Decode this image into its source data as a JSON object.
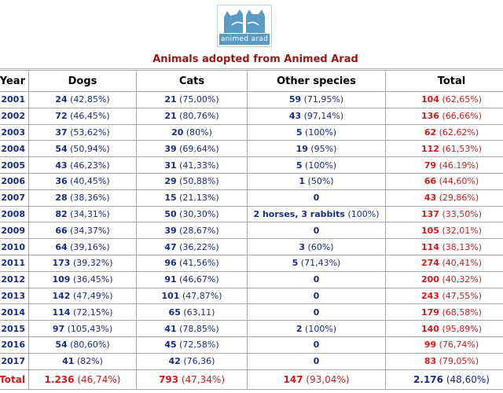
{
  "logo": {
    "text": "animed arad"
  },
  "caption": "Animals adopted from Animed Arad",
  "headers": {
    "year": "Year",
    "dogs": "Dogs",
    "cats": "Cats",
    "other": "Other species",
    "total": "Total"
  },
  "rows": [
    {
      "year": "2001",
      "dogs_n": "24",
      "dogs_p": " (42,85%)",
      "cats_n": "21",
      "cats_p": " (75,00%)",
      "other_n": "59",
      "other_p": " (71,95%)",
      "total_n": "104",
      "total_p": " (62,65%)"
    },
    {
      "year": "2002",
      "dogs_n": "72",
      "dogs_p": " (46,45%)",
      "cats_n": "21",
      "cats_p": " (80,76%)",
      "other_n": "43",
      "other_p": " (97,14%)",
      "total_n": "136",
      "total_p": " (66,66%)"
    },
    {
      "year": "2003",
      "dogs_n": "37",
      "dogs_p": " (53,62%)",
      "cats_n": "20",
      "cats_p": " (80%)",
      "other_n": "5",
      "other_p": " (100%)",
      "total_n": "62",
      "total_p": " (62,62%)"
    },
    {
      "year": "2004",
      "dogs_n": "54",
      "dogs_p": " (50,94%)",
      "cats_n": "39",
      "cats_p": " (69,64%)",
      "other_n": "19",
      "other_p": " (95%)",
      "total_n": "112",
      "total_p": " (61,53%)"
    },
    {
      "year": "2005",
      "dogs_n": "43",
      "dogs_p": " (46,23%)",
      "cats_n": "31",
      "cats_p": " (41,33%)",
      "other_n": "5",
      "other_p": " (100%)",
      "total_n": "79",
      "total_p": " (46.19%)"
    },
    {
      "year": "2006",
      "dogs_n": "36",
      "dogs_p": " (40,45%)",
      "cats_n": "29",
      "cats_p": " (50,88%)",
      "other_n": "1",
      "other_p": " (50%)",
      "total_n": "66",
      "total_p": " (44,60%)"
    },
    {
      "year": "2007",
      "dogs_n": "28",
      "dogs_p": " (38,36%)",
      "cats_n": "15",
      "cats_p": " (21,13%)",
      "other_n": "0",
      "other_p": "",
      "total_n": "43",
      "total_p": " (29,86%)"
    },
    {
      "year": "2008",
      "dogs_n": "82",
      "dogs_p": " (34,31%)",
      "cats_n": "50",
      "cats_p": " (30,30%)",
      "other_n": "2 horses, 3 rabbits",
      "other_p": " (100%)",
      "total_n": "137",
      "total_p": " (33,50%)"
    },
    {
      "year": "2009",
      "dogs_n": "66",
      "dogs_p": " (34,37%)",
      "cats_n": "39",
      "cats_p": " (28,67%)",
      "other_n": "0",
      "other_p": "",
      "total_n": "105",
      "total_p": " (32,01%)"
    },
    {
      "year": "2010",
      "dogs_n": "64",
      "dogs_p": " (39,16%)",
      "cats_n": "47",
      "cats_p": " (36,22%)",
      "other_n": "3",
      "other_p": " (60%)",
      "total_n": "114",
      "total_p": " (38,13%)"
    },
    {
      "year": "2011",
      "dogs_n": "173",
      "dogs_p": " (39,32%)",
      "cats_n": "96",
      "cats_p": " (41,56%)",
      "other_n": "5",
      "other_p": " (71,43%)",
      "total_n": "274",
      "total_p": " (40,41%)"
    },
    {
      "year": "2012",
      "dogs_n": "109",
      "dogs_p": " (36,45%)",
      "cats_n": "91",
      "cats_p": " (46,67%)",
      "other_n": "0",
      "other_p": "",
      "total_n": "200",
      "total_p": " (40,32%)"
    },
    {
      "year": "2013",
      "dogs_n": "142",
      "dogs_p": " (47,49%)",
      "cats_n": "101",
      "cats_p": " (47,87%)",
      "other_n": "0",
      "other_p": "",
      "total_n": "243",
      "total_p": " (47,55%)"
    },
    {
      "year": "2014",
      "dogs_n": "114",
      "dogs_p": " (72,15%)",
      "cats_n": "65",
      "cats_p": " (63,11)",
      "other_n": "0",
      "other_p": "",
      "total_n": "179",
      "total_p": " (68,58%)"
    },
    {
      "year": "2015",
      "dogs_n": "97",
      "dogs_p": " (105,43%)",
      "cats_n": "41",
      "cats_p": " (78,85%)",
      "other_n": "2",
      "other_p": " (100%)",
      "total_n": "140",
      "total_p": " (95,89%)"
    },
    {
      "year": "2016",
      "dogs_n": "54",
      "dogs_p": " (80,60%)",
      "cats_n": "45",
      "cats_p": " (72,58%)",
      "other_n": "0",
      "other_p": "",
      "total_n": "99",
      "total_p": " (76,74%)"
    },
    {
      "year": "2017",
      "dogs_n": "41",
      "dogs_p": " (82%)",
      "cats_n": "42",
      "cats_p": " (76,36)",
      "other_n": "0",
      "other_p": "",
      "total_n": "83",
      "total_p": " (79,05%)"
    }
  ],
  "totals": {
    "label": "Total",
    "dogs_n": "1.236",
    "dogs_p": " (46,74%)",
    "cats_n": "793",
    "cats_p": " (47,34%)",
    "other_n": "147",
    "other_p": " (93,04%)",
    "total_n": "2.176",
    "total_p": " (48,60%)"
  },
  "colors": {
    "blue": "#1a2a8a",
    "red": "#d61a1a",
    "caption": "#9b1717",
    "logo": "#5b9ac6"
  }
}
